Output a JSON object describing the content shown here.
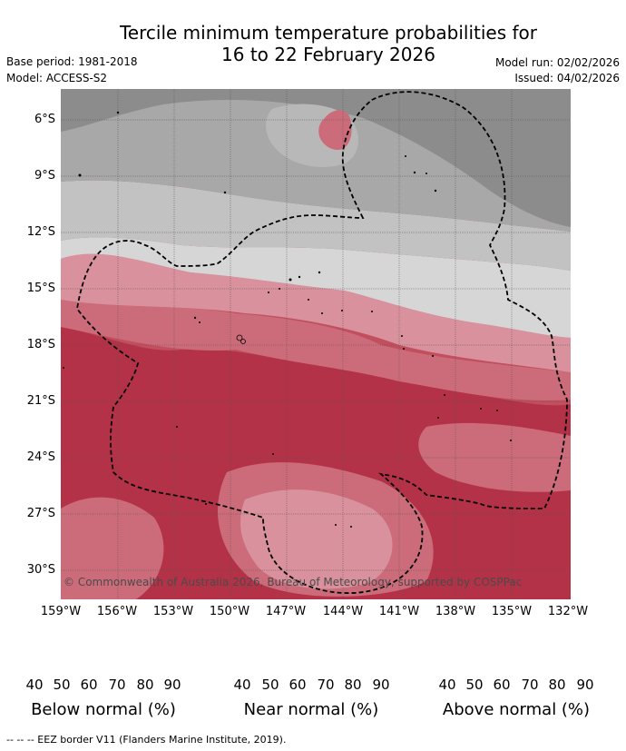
{
  "title_line1": "Tercile minimum temperature probabilities for",
  "title_line2": "16 to 22 February 2026",
  "base_period": "Base period: 1981-2018",
  "model": "Model: ACCESS-S2",
  "model_run": "Model run: 02/02/2026",
  "issued": "Issued: 04/02/2026",
  "map": {
    "lat_labels": [
      "6°S",
      "9°S",
      "12°S",
      "15°S",
      "18°S",
      "21°S",
      "24°S",
      "27°S",
      "30°S"
    ],
    "lon_labels": [
      "159°W",
      "156°W",
      "153°W",
      "150°W",
      "147°W",
      "144°W",
      "141°W",
      "138°W",
      "135°W",
      "132°W"
    ],
    "copyright": "© Commonwealth of Australia 2026, Bureau of Meteorology, supported by COSPPac"
  },
  "colorbars": [
    {
      "title": "Below normal (%)",
      "ticks": [
        "40",
        "50",
        "60",
        "70",
        "80",
        "90"
      ],
      "colors": [
        "#ffffff",
        "#c3d8de",
        "#a6c9d2",
        "#88b9c5",
        "#6aa9b8",
        "#4a9aad"
      ]
    },
    {
      "title": "Near normal (%)",
      "ticks": [
        "40",
        "50",
        "60",
        "70",
        "80",
        "90"
      ],
      "colors": [
        "#ffffff",
        "#e3e3e3",
        "#d3d3d3",
        "#c2c2c2",
        "#afafaf",
        "#9a9a9a"
      ]
    },
    {
      "title": "Above normal (%)",
      "ticks": [
        "40",
        "50",
        "60",
        "70",
        "80",
        "90"
      ],
      "colors": [
        "#ffffff",
        "#e6b8c0",
        "#d9919d",
        "#cc6c7b",
        "#c14f5e",
        "#b43247"
      ]
    }
  ],
  "footnote": "--  --  -- EEZ border V11 (Flanders Marine Institute, 2019)."
}
